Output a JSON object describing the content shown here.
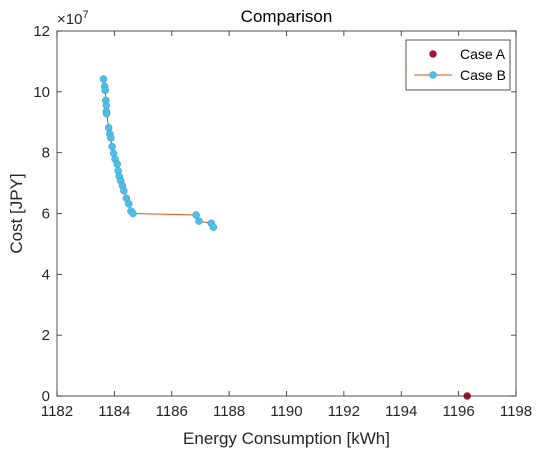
{
  "chart_data": {
    "type": "scatter",
    "title": "Comparison",
    "xlabel": "Energy Consumption [kWh]",
    "ylabel": "Cost [JPY]",
    "y_exponent_label": "×10",
    "y_exponent_power": "7",
    "xlim": [
      1182,
      1198
    ],
    "ylim": [
      0,
      12
    ],
    "xticks": [
      "1182",
      "1184",
      "1186",
      "1188",
      "1190",
      "1192",
      "1194",
      "1196",
      "1198"
    ],
    "yticks": [
      "0",
      "2",
      "4",
      "6",
      "8",
      "10",
      "12"
    ],
    "grid": false,
    "legend_position": "top-right",
    "series": [
      {
        "name": "Case A",
        "marker": "circle",
        "line": false,
        "marker_color": "#a2142f",
        "x": [
          1196.3
        ],
        "y": [
          0.0
        ]
      },
      {
        "name": "Case B",
        "marker": "circle",
        "line": true,
        "line_color": "#d95319",
        "marker_color": "#4dbeee",
        "x": [
          1183.62,
          1183.66,
          1183.68,
          1183.7,
          1183.72,
          1183.72,
          1183.73,
          1183.8,
          1183.84,
          1183.88,
          1183.92,
          1183.97,
          1184.03,
          1184.1,
          1184.13,
          1184.17,
          1184.22,
          1184.28,
          1184.33,
          1184.42,
          1184.5,
          1184.58,
          1184.65,
          1186.85,
          1186.95,
          1187.38,
          1187.45
        ],
        "y": [
          10.42,
          10.18,
          10.05,
          9.72,
          9.55,
          9.35,
          9.28,
          8.82,
          8.62,
          8.48,
          8.2,
          7.98,
          7.78,
          7.62,
          7.4,
          7.22,
          7.08,
          6.92,
          6.75,
          6.5,
          6.32,
          6.08,
          6.0,
          5.95,
          5.75,
          5.68,
          5.55
        ]
      }
    ]
  }
}
